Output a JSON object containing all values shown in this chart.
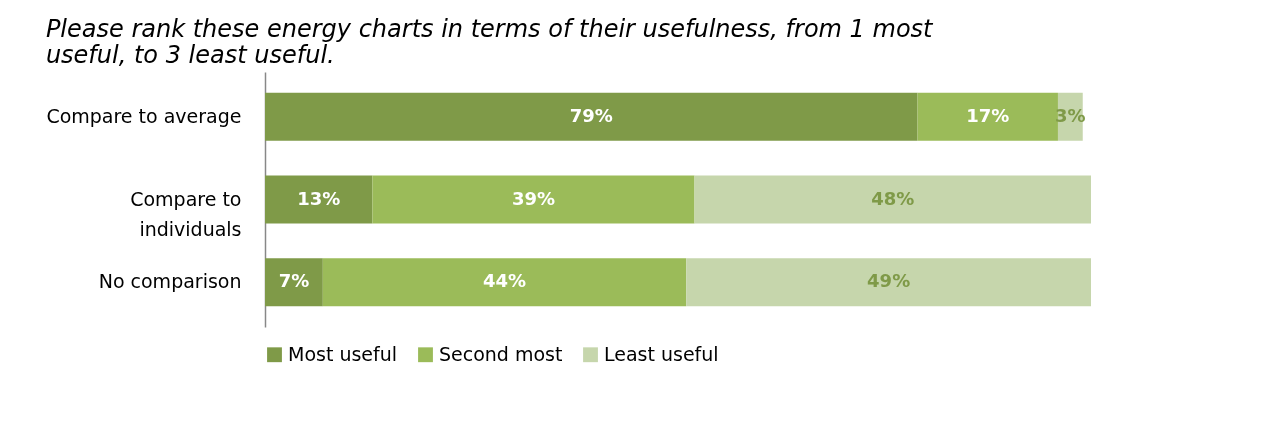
{
  "chart_data": {
    "type": "bar",
    "orientation": "horizontal",
    "stacked": true,
    "title": "Please rank these energy charts in terms of their usefulness, from 1 most useful, to 3 least useful.",
    "categories": [
      "Compare to average",
      "Compare to individuals",
      "No comparison"
    ],
    "series": [
      {
        "name": "Most useful",
        "color": "#7f9a48",
        "values": [
          79,
          13,
          7
        ],
        "value_labels": [
          "79%",
          "13%",
          "7%"
        ]
      },
      {
        "name": "Second most",
        "color": "#9bbb59",
        "values": [
          17,
          39,
          44
        ],
        "value_labels": [
          "17%",
          "39%",
          "44%"
        ]
      },
      {
        "name": "Least useful",
        "color": "#c6d6ac",
        "values": [
          3,
          48,
          49
        ],
        "value_labels": [
          "3%",
          "48%",
          "49%"
        ]
      }
    ],
    "legend": "bottom",
    "grid": false,
    "tick_labels": "y"
  }
}
